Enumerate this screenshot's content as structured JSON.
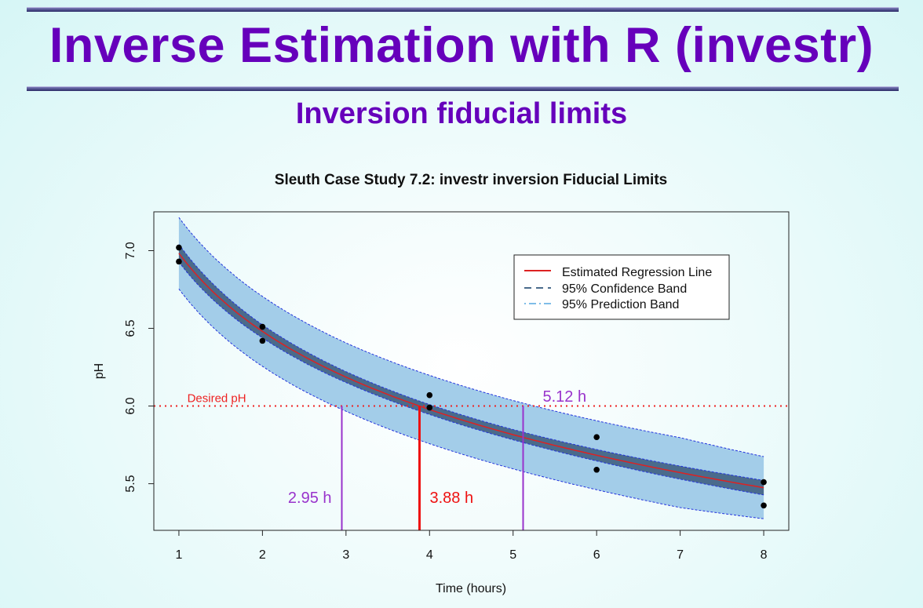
{
  "slide": {
    "title": "Inverse Estimation with R (investr)",
    "subtitle": "Inversion fiducial limits",
    "title_color": "#6600bb"
  },
  "chart_data": {
    "type": "line",
    "title": "Sleuth Case Study 7.2: investr inversion Fiducial Limits",
    "xlabel": "Time (hours)",
    "ylabel": "pH",
    "xlim": [
      0.7,
      8.3
    ],
    "ylim": [
      5.2,
      7.25
    ],
    "x_ticks": [
      "1",
      "2",
      "3",
      "4",
      "5",
      "6",
      "7",
      "8"
    ],
    "y_ticks": [
      "5.5",
      "6.0",
      "6.5",
      "7.0"
    ],
    "regression": {
      "intercept": 6.9836,
      "slope_per_log_hour": -0.7257,
      "transform": "log"
    },
    "confidence_halfwidth": [
      0.057,
      0.042,
      0.035,
      0.032,
      0.033,
      0.037,
      0.042,
      0.047
    ],
    "prediction_halfwidth": [
      0.23,
      0.225,
      0.22,
      0.22,
      0.22,
      0.222,
      0.225,
      0.2
    ],
    "points": [
      {
        "x": 1,
        "y": 7.02
      },
      {
        "x": 1,
        "y": 6.93
      },
      {
        "x": 2,
        "y": 6.51
      },
      {
        "x": 2,
        "y": 6.42
      },
      {
        "x": 4,
        "y": 6.07
      },
      {
        "x": 4,
        "y": 5.99
      },
      {
        "x": 6,
        "y": 5.8
      },
      {
        "x": 6,
        "y": 5.59
      },
      {
        "x": 8,
        "y": 5.51
      },
      {
        "x": 8,
        "y": 5.36
      }
    ],
    "desired_ph": 6.0,
    "desired_label": "Desired pH",
    "estimate": {
      "x": 3.88,
      "label": "3.88 h"
    },
    "lower_limit": {
      "x": 2.95,
      "label": "2.95 h"
    },
    "upper_limit": {
      "x": 5.12,
      "label": "5.12 h"
    },
    "legend": {
      "position": "top-right",
      "entries": [
        "Estimated Regression Line",
        "95% Confidence Band",
        "95% Prediction Band"
      ]
    },
    "colors": {
      "regression": "#dd2222",
      "confidence_fill": "#4a6b8c",
      "prediction_fill": "#a3cde9",
      "band_border": "#2233dd",
      "estimate": "#ee1111",
      "limits": "#9933cc",
      "desired": "#ee2222",
      "points": "#000000"
    }
  }
}
